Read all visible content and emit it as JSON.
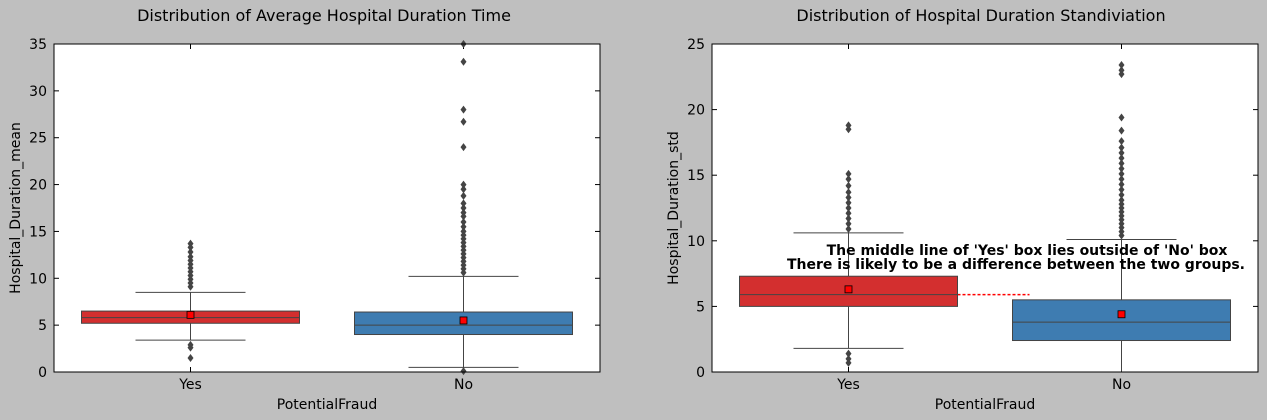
{
  "chart_data": [
    {
      "type": "box",
      "title": "Distribution of Average Hospital Duration Time",
      "xlabel": "PotentialFraud",
      "ylabel": "Hospital_Duration_mean",
      "categories": [
        "Yes",
        "No"
      ],
      "ylim": [
        0,
        35
      ],
      "yticks": [
        0,
        5,
        10,
        15,
        20,
        25,
        30,
        35
      ],
      "grid": false,
      "boxes": [
        {
          "category": "Yes",
          "color": "#d32f2f",
          "whisker_low": 3.4,
          "q1": 5.2,
          "median": 5.8,
          "q3": 6.5,
          "whisker_high": 8.5,
          "mean": 6.1,
          "outliers": [
            1.5,
            2.6,
            2.9,
            9.1,
            9.5,
            9.9,
            10.3,
            10.7,
            11.1,
            11.5,
            11.9,
            12.3,
            12.8,
            13.3,
            13.7
          ]
        },
        {
          "category": "No",
          "color": "#3e7cb1",
          "whisker_low": 0.5,
          "q1": 4.0,
          "median": 5.0,
          "q3": 6.4,
          "whisker_high": 10.2,
          "mean": 5.5,
          "outliers": [
            0.1,
            10.6,
            11.0,
            11.4,
            11.8,
            12.2,
            12.6,
            13.0,
            13.4,
            13.8,
            14.2,
            14.6,
            15.0,
            15.5,
            16.0,
            16.6,
            17.0,
            17.5,
            18.0,
            18.8,
            19.5,
            20.0,
            24.0,
            26.7,
            28.0,
            33.1,
            35.0
          ]
        }
      ]
    },
    {
      "type": "box",
      "title": "Distribution of Hospital Duration Standiviation",
      "xlabel": "PotentialFraud",
      "ylabel": "Hospital_Duration_std",
      "categories": [
        "Yes",
        "No"
      ],
      "ylim": [
        0,
        25
      ],
      "yticks": [
        0,
        5,
        10,
        15,
        20,
        25
      ],
      "grid": false,
      "boxes": [
        {
          "category": "Yes",
          "color": "#d32f2f",
          "whisker_low": 1.8,
          "q1": 5.0,
          "median": 5.9,
          "q3": 7.3,
          "whisker_high": 10.6,
          "mean": 6.3,
          "outliers": [
            0.7,
            1.0,
            1.4,
            10.9,
            11.3,
            11.7,
            12.1,
            12.5,
            12.9,
            13.3,
            13.7,
            14.2,
            14.7,
            15.1,
            18.5,
            18.8
          ]
        },
        {
          "category": "No",
          "color": "#3e7cb1",
          "whisker_low": 0.0,
          "q1": 2.4,
          "median": 3.8,
          "q3": 5.5,
          "whisker_high": 10.1,
          "mean": 4.4,
          "outliers": [
            10.4,
            10.7,
            11.0,
            11.3,
            11.6,
            11.9,
            12.2,
            12.5,
            12.8,
            13.1,
            13.5,
            13.9,
            14.3,
            14.7,
            15.1,
            15.5,
            15.9,
            16.3,
            16.7,
            17.1,
            17.6,
            18.4,
            19.4,
            22.7,
            23.0,
            23.4
          ]
        }
      ],
      "reference_line": {
        "y": 5.9,
        "color": "#ff0000"
      },
      "annotations": [
        "The middle line of 'Yes' box lies outside of 'No' box",
        "There is likely to be a difference between the two groups."
      ]
    }
  ]
}
